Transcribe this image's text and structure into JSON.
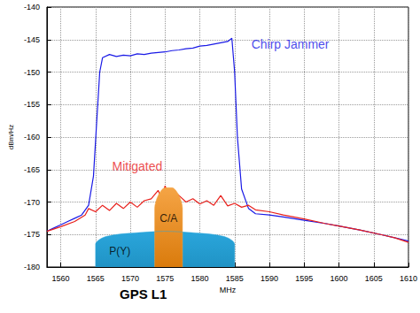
{
  "chart_data": {
    "type": "line",
    "title": "GPS L1",
    "x_label": "MHz",
    "y_label": "dBm/Hz",
    "xlim": [
      1558,
      1610
    ],
    "xticks": [
      1560,
      1565,
      1570,
      1575,
      1580,
      1585,
      1590,
      1595,
      1600,
      1605,
      1610
    ],
    "ylim": [
      -180,
      -140
    ],
    "yticks": [
      -180,
      -175,
      -170,
      -165,
      -160,
      -155,
      -150,
      -145,
      -140
    ],
    "grid": true,
    "series": [
      {
        "name": "Chirp Jammer",
        "type": "line",
        "color": "#1a1ae6",
        "label_at": [
          1593,
          -145.7
        ],
        "x": [
          1558,
          1559,
          1560,
          1561,
          1562,
          1563,
          1564,
          1564.7,
          1565.2,
          1565.6,
          1566,
          1567,
          1568,
          1569,
          1570,
          1571,
          1572,
          1573,
          1574,
          1575,
          1576,
          1577,
          1578,
          1579,
          1580,
          1581,
          1582,
          1583,
          1584,
          1584.6,
          1585,
          1585.4,
          1586,
          1587,
          1588,
          1590,
          1592,
          1595,
          1598,
          1600,
          1603,
          1606,
          1608,
          1610
        ],
        "values": [
          -174.5,
          -174,
          -173.5,
          -173,
          -172.5,
          -172,
          -170.5,
          -166,
          -157,
          -150,
          -147.8,
          -147.3,
          -147.6,
          -147.4,
          -147.5,
          -147.2,
          -147.3,
          -147.1,
          -147,
          -146.9,
          -146.7,
          -146.6,
          -146.4,
          -146.3,
          -146,
          -145.9,
          -145.7,
          -145.5,
          -145.3,
          -144.8,
          -150,
          -160,
          -168,
          -171,
          -171.8,
          -172,
          -172.3,
          -172.8,
          -173.3,
          -173.7,
          -174.3,
          -175,
          -175.5,
          -176
        ]
      },
      {
        "name": "Mitigated",
        "type": "line",
        "color": "#e8201c",
        "label_at": [
          1571,
          -164.5
        ],
        "x": [
          1558,
          1560,
          1562,
          1563.5,
          1564,
          1565,
          1566,
          1567,
          1568,
          1569,
          1570,
          1571,
          1572,
          1573,
          1574,
          1574.5,
          1575,
          1575.5,
          1576,
          1577,
          1578,
          1579,
          1580,
          1581,
          1582,
          1583,
          1584,
          1585,
          1586,
          1587,
          1588,
          1590,
          1592,
          1595,
          1598,
          1600,
          1603,
          1606,
          1608,
          1610
        ],
        "values": [
          -174.5,
          -173.8,
          -173,
          -172,
          -171,
          -171.5,
          -170.5,
          -171.3,
          -170.2,
          -171,
          -170,
          -170.8,
          -169.8,
          -169.5,
          -168.2,
          -169.5,
          -167.5,
          -169,
          -168,
          -169,
          -170,
          -169.5,
          -170.3,
          -169.8,
          -170.5,
          -169,
          -170.6,
          -170.2,
          -170.8,
          -170.5,
          -171.2,
          -171.5,
          -172,
          -172.6,
          -173.3,
          -173.7,
          -174.3,
          -175,
          -175.5,
          -176.2
        ]
      },
      {
        "name": "P(Y)",
        "type": "area",
        "color": "#2aa6dc",
        "label_at": [
          1568.5,
          -177.5
        ],
        "x": [
          1565,
          1565,
          1566,
          1568,
          1570,
          1575,
          1580,
          1582,
          1584,
          1585,
          1585
        ],
        "values": [
          -180,
          -176.5,
          -175.5,
          -175,
          -174.8,
          -174.5,
          -174.8,
          -175,
          -175.5,
          -176.5,
          -180
        ]
      },
      {
        "name": "C/A",
        "type": "area",
        "color": "#f5a445",
        "label_at": [
          1575.5,
          -172.5
        ],
        "x": [
          1573.5,
          1573.5,
          1574,
          1575,
          1576,
          1577,
          1577.5,
          1577.5
        ],
        "values": [
          -180,
          -171,
          -169,
          -167.8,
          -167.8,
          -169,
          -171,
          -180
        ]
      }
    ]
  }
}
